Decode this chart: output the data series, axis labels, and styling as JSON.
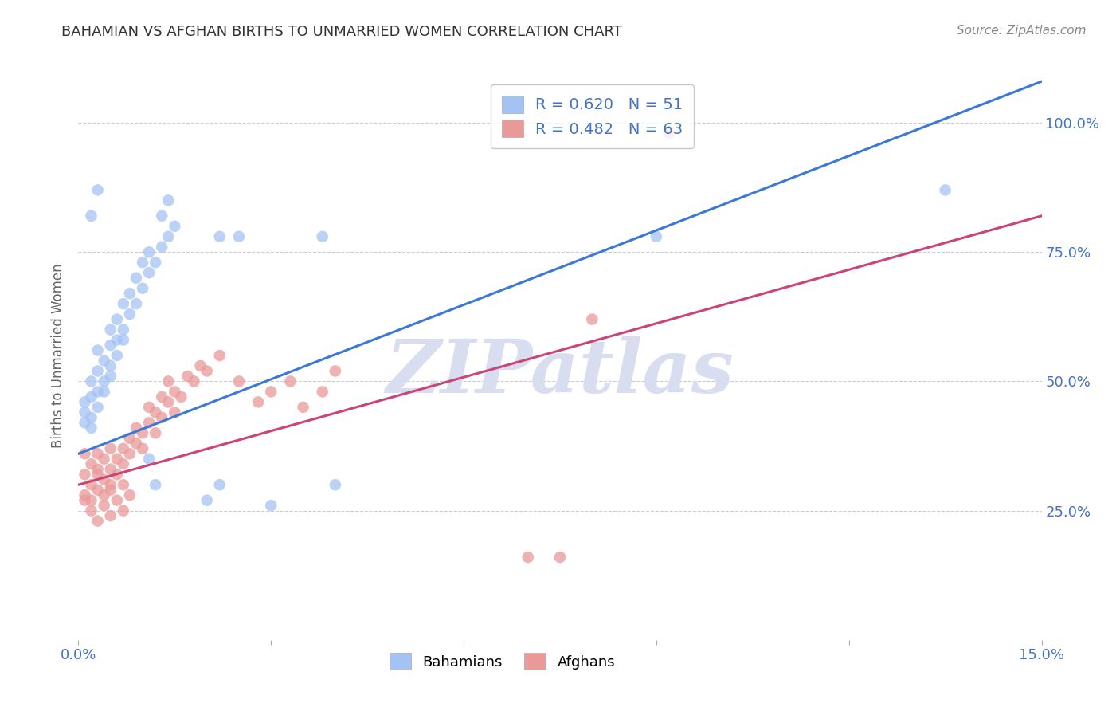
{
  "title": "BAHAMIAN VS AFGHAN BIRTHS TO UNMARRIED WOMEN CORRELATION CHART",
  "source": "Source: ZipAtlas.com",
  "ylabel": "Births to Unmarried Women",
  "legend_bahamian_R": "0.620",
  "legend_bahamian_N": "51",
  "legend_afghan_R": "0.482",
  "legend_afghan_N": "63",
  "blue_color": "#A4C2F4",
  "pink_color": "#EA9999",
  "blue_line_color": "#3C78D8",
  "pink_line_color": "#CC4477",
  "watermark": "ZIPatlas",
  "watermark_color": "#D8DEF0",
  "background_color": "#FFFFFF",
  "grid_color": "#CCCCCC",
  "title_color": "#333333",
  "axis_label_color": "#4472C4",
  "ytick_vals": [
    0.25,
    0.5,
    0.75,
    1.0
  ],
  "yticks": [
    "25.0%",
    "50.0%",
    "75.0%",
    "100.0%"
  ],
  "xlim": [
    0.0,
    0.15
  ],
  "ylim": [
    0.0,
    1.1
  ],
  "blue_line_x": [
    0.0,
    0.15
  ],
  "blue_line_y": [
    0.36,
    1.08
  ],
  "pink_line_x": [
    0.0,
    0.15
  ],
  "pink_line_y": [
    0.3,
    0.82
  ],
  "blue_scatter": [
    [
      0.001,
      0.42
    ],
    [
      0.001,
      0.44
    ],
    [
      0.001,
      0.46
    ],
    [
      0.002,
      0.41
    ],
    [
      0.002,
      0.47
    ],
    [
      0.002,
      0.5
    ],
    [
      0.002,
      0.43
    ],
    [
      0.003,
      0.48
    ],
    [
      0.003,
      0.52
    ],
    [
      0.003,
      0.45
    ],
    [
      0.003,
      0.56
    ],
    [
      0.004,
      0.5
    ],
    [
      0.004,
      0.54
    ],
    [
      0.004,
      0.48
    ],
    [
      0.005,
      0.53
    ],
    [
      0.005,
      0.57
    ],
    [
      0.005,
      0.51
    ],
    [
      0.005,
      0.6
    ],
    [
      0.006,
      0.55
    ],
    [
      0.006,
      0.62
    ],
    [
      0.006,
      0.58
    ],
    [
      0.007,
      0.6
    ],
    [
      0.007,
      0.65
    ],
    [
      0.007,
      0.58
    ],
    [
      0.008,
      0.63
    ],
    [
      0.008,
      0.67
    ],
    [
      0.009,
      0.65
    ],
    [
      0.009,
      0.7
    ],
    [
      0.01,
      0.68
    ],
    [
      0.01,
      0.73
    ],
    [
      0.011,
      0.71
    ],
    [
      0.011,
      0.75
    ],
    [
      0.012,
      0.73
    ],
    [
      0.013,
      0.76
    ],
    [
      0.014,
      0.78
    ],
    [
      0.015,
      0.8
    ],
    [
      0.002,
      0.82
    ],
    [
      0.003,
      0.87
    ],
    [
      0.011,
      0.35
    ],
    [
      0.012,
      0.3
    ],
    [
      0.02,
      0.27
    ],
    [
      0.022,
      0.3
    ],
    [
      0.03,
      0.26
    ],
    [
      0.04,
      0.3
    ],
    [
      0.013,
      0.82
    ],
    [
      0.014,
      0.85
    ],
    [
      0.022,
      0.78
    ],
    [
      0.025,
      0.78
    ],
    [
      0.038,
      0.78
    ],
    [
      0.09,
      0.78
    ],
    [
      0.135,
      0.87
    ]
  ],
  "pink_scatter": [
    [
      0.001,
      0.32
    ],
    [
      0.001,
      0.28
    ],
    [
      0.001,
      0.36
    ],
    [
      0.002,
      0.3
    ],
    [
      0.002,
      0.34
    ],
    [
      0.002,
      0.27
    ],
    [
      0.003,
      0.32
    ],
    [
      0.003,
      0.36
    ],
    [
      0.003,
      0.29
    ],
    [
      0.003,
      0.33
    ],
    [
      0.004,
      0.31
    ],
    [
      0.004,
      0.35
    ],
    [
      0.004,
      0.28
    ],
    [
      0.005,
      0.33
    ],
    [
      0.005,
      0.37
    ],
    [
      0.005,
      0.3
    ],
    [
      0.006,
      0.35
    ],
    [
      0.006,
      0.32
    ],
    [
      0.007,
      0.37
    ],
    [
      0.007,
      0.34
    ],
    [
      0.008,
      0.39
    ],
    [
      0.008,
      0.36
    ],
    [
      0.009,
      0.38
    ],
    [
      0.009,
      0.41
    ],
    [
      0.01,
      0.4
    ],
    [
      0.01,
      0.37
    ],
    [
      0.011,
      0.42
    ],
    [
      0.011,
      0.45
    ],
    [
      0.012,
      0.44
    ],
    [
      0.012,
      0.4
    ],
    [
      0.013,
      0.43
    ],
    [
      0.013,
      0.47
    ],
    [
      0.014,
      0.46
    ],
    [
      0.014,
      0.5
    ],
    [
      0.015,
      0.48
    ],
    [
      0.015,
      0.44
    ],
    [
      0.016,
      0.47
    ],
    [
      0.017,
      0.51
    ],
    [
      0.018,
      0.5
    ],
    [
      0.019,
      0.53
    ],
    [
      0.02,
      0.52
    ],
    [
      0.022,
      0.55
    ],
    [
      0.025,
      0.5
    ],
    [
      0.028,
      0.46
    ],
    [
      0.03,
      0.48
    ],
    [
      0.033,
      0.5
    ],
    [
      0.035,
      0.45
    ],
    [
      0.038,
      0.48
    ],
    [
      0.04,
      0.52
    ],
    [
      0.001,
      0.27
    ],
    [
      0.002,
      0.25
    ],
    [
      0.003,
      0.23
    ],
    [
      0.004,
      0.26
    ],
    [
      0.005,
      0.29
    ],
    [
      0.005,
      0.24
    ],
    [
      0.006,
      0.27
    ],
    [
      0.007,
      0.3
    ],
    [
      0.007,
      0.25
    ],
    [
      0.008,
      0.28
    ],
    [
      0.075,
      0.16
    ],
    [
      0.092,
      0.98
    ],
    [
      0.08,
      0.62
    ],
    [
      0.07,
      0.16
    ]
  ]
}
